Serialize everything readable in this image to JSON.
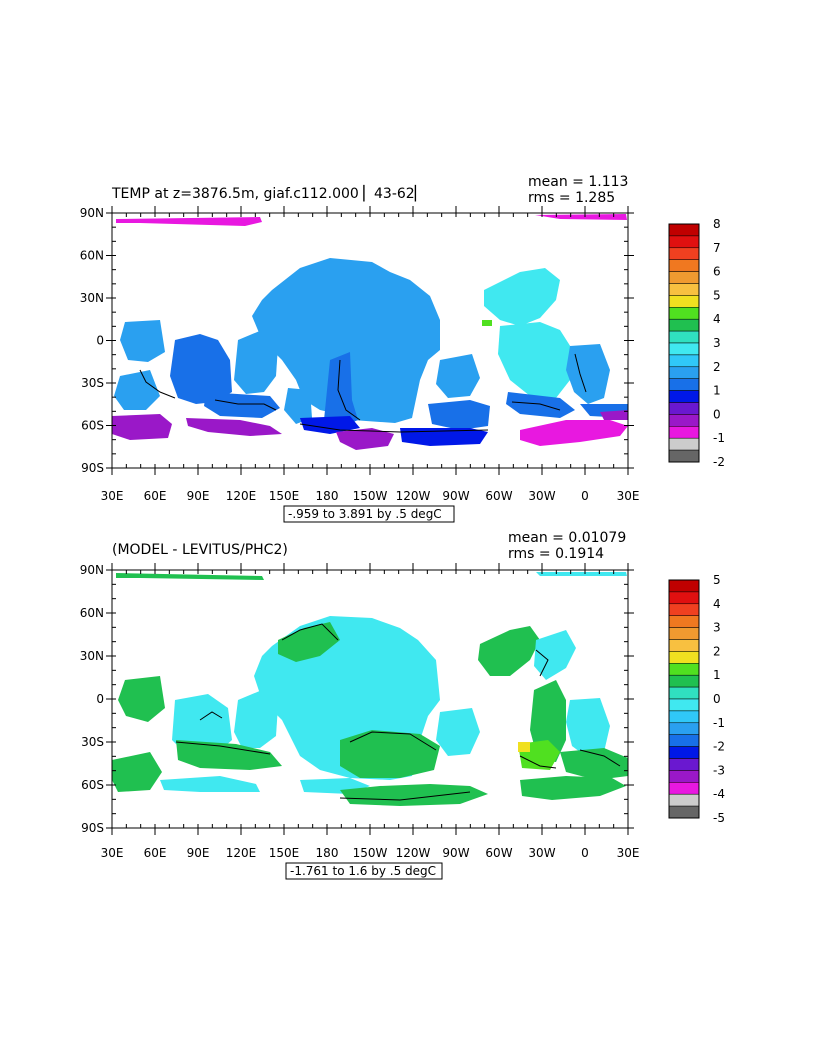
{
  "panels": [
    {
      "title": "TEMP at z=3876.5m, giaf.c112.000 ▏43-62▏",
      "mean": "mean = 1.113",
      "rms": "rms = 1.285",
      "range": "-.959 to 3.891 by .5 degC",
      "lat_labels": [
        "90N",
        "60N",
        "30N",
        "0",
        "30S",
        "60S",
        "90S"
      ],
      "lon_labels": [
        "30E",
        "60E",
        "90E",
        "120E",
        "150E",
        "180",
        "150W",
        "120W",
        "90W",
        "60W",
        "30W",
        "0",
        "30E"
      ],
      "colorbar": {
        "labels": [
          "8",
          "7",
          "6",
          "5",
          "4",
          "3",
          "2",
          "1",
          "0",
          "-1",
          "-2"
        ],
        "colors": [
          "#c00000",
          "#e01010",
          "#f04020",
          "#f07820",
          "#f09a30",
          "#f8c040",
          "#f0e020",
          "#50e020",
          "#20c050",
          "#30e0c0",
          "#40e8f0",
          "#30c8f8",
          "#2aa0f0",
          "#1870e8",
          "#0018e8",
          "#6a18d0",
          "#9a18c8",
          "#e818e0",
          "#cccccc",
          "#666666"
        ]
      }
    },
    {
      "title": "(MODEL - LEVITUS/PHC2)",
      "mean": "mean = 0.01079",
      "rms": "rms = 0.1914",
      "range": "-1.761 to 1.6 by .5 degC",
      "lat_labels": [
        "90N",
        "60N",
        "30N",
        "0",
        "30S",
        "60S",
        "90S"
      ],
      "lon_labels": [
        "30E",
        "60E",
        "90E",
        "120E",
        "150E",
        "180",
        "150W",
        "120W",
        "90W",
        "60W",
        "30W",
        "0",
        "30E"
      ],
      "colorbar": {
        "labels": [
          "5",
          "4",
          "3",
          "2",
          "1",
          "0",
          "-1",
          "-2",
          "-3",
          "-4",
          "-5"
        ],
        "colors": [
          "#c00000",
          "#e01010",
          "#f04020",
          "#f07820",
          "#f09a30",
          "#f8c040",
          "#f0e020",
          "#50e020",
          "#20c050",
          "#30e0c0",
          "#40e8f0",
          "#30c8f8",
          "#2aa0f0",
          "#1870e8",
          "#0018e8",
          "#6a18d0",
          "#9a18c8",
          "#e818e0",
          "#cccccc",
          "#666666"
        ]
      }
    }
  ],
  "fill_colors": {
    "cyan": "#40e8f0",
    "skyblue": "#2aa0f0",
    "blue": "#0018e8",
    "midblue": "#1870e8",
    "purple": "#9a18c8",
    "magenta": "#e818e0",
    "green": "#20c050",
    "lightgreen": "#50e020",
    "yellow": "#f0e020"
  }
}
